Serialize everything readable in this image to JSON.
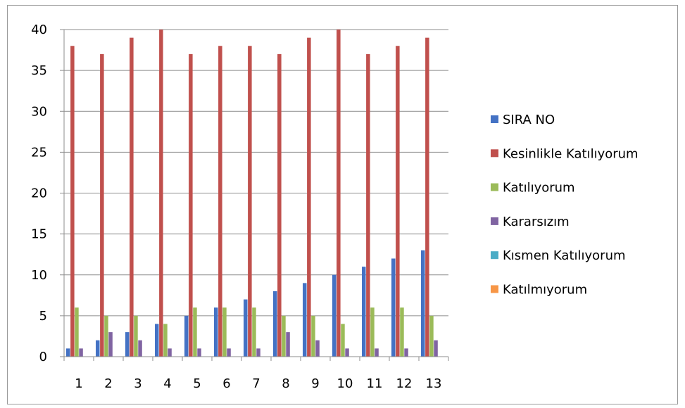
{
  "chart_data": {
    "type": "bar",
    "categories": [
      "1",
      "2",
      "3",
      "4",
      "5",
      "6",
      "7",
      "8",
      "9",
      "10",
      "11",
      "12",
      "13"
    ],
    "series": [
      {
        "name": "SIRA NO",
        "color": "#4472C4",
        "values": [
          1,
          2,
          3,
          4,
          5,
          6,
          7,
          8,
          9,
          10,
          11,
          12,
          13
        ]
      },
      {
        "name": "Kesinlikle Katılıyorum",
        "color": "#C0504D",
        "values": [
          38,
          37,
          39,
          40,
          37,
          38,
          38,
          37,
          39,
          40,
          37,
          38,
          39
        ]
      },
      {
        "name": "Katılıyorum",
        "color": "#9BBB59",
        "values": [
          6,
          5,
          5,
          4,
          6,
          6,
          6,
          5,
          5,
          4,
          6,
          6,
          5
        ]
      },
      {
        "name": "Kararsızım",
        "color": "#8064A2",
        "values": [
          1,
          3,
          2,
          1,
          1,
          1,
          1,
          3,
          2,
          1,
          1,
          1,
          2
        ]
      },
      {
        "name": "Kısmen Katılıyorum",
        "color": "#4BACC6",
        "values": [
          0,
          0,
          0,
          0,
          0,
          0,
          0,
          0,
          0,
          0,
          0,
          0,
          0
        ]
      },
      {
        "name": "Katılmıyorum",
        "color": "#F79646",
        "values": [
          0,
          0,
          0,
          0,
          0,
          0,
          0,
          0,
          0,
          0,
          0,
          0,
          0
        ]
      }
    ],
    "yticks": [
      "0",
      "5",
      "10",
      "15",
      "20",
      "25",
      "30",
      "35",
      "40"
    ],
    "ylim": [
      0,
      40
    ],
    "grid": true,
    "legend": "right"
  }
}
